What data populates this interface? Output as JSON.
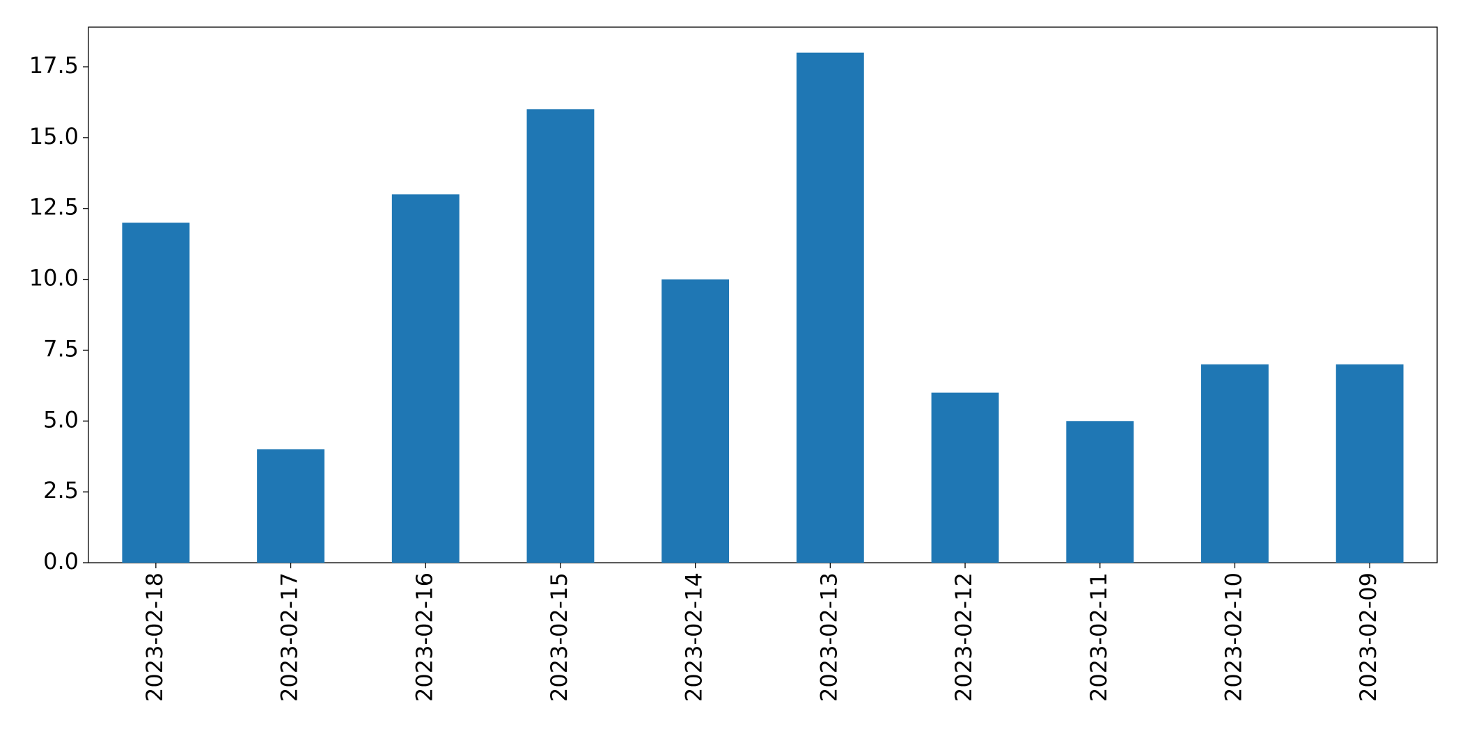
{
  "chart_data": {
    "type": "bar",
    "categories": [
      "2023-02-18",
      "2023-02-17",
      "2023-02-16",
      "2023-02-15",
      "2023-02-14",
      "2023-02-13",
      "2023-02-12",
      "2023-02-11",
      "2023-02-10",
      "2023-02-09"
    ],
    "values": [
      12,
      4,
      13,
      16,
      10,
      18,
      6,
      5,
      7,
      7
    ],
    "color": "#1f77b4",
    "ylim": [
      0,
      18.9
    ],
    "yticks": [
      {
        "value": 0,
        "label": "0.0"
      },
      2.5,
      {
        "value": 5,
        "label": "5.0"
      },
      7.5,
      {
        "value": 10,
        "label": "10.0"
      },
      12.5,
      {
        "value": 15,
        "label": "15.0"
      },
      17.5
    ],
    "grid": false
  }
}
